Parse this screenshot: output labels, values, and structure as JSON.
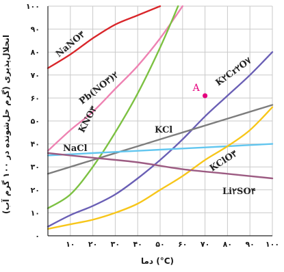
{
  "chart_data": {
    "type": "line",
    "xlabel": "دما (°C)",
    "ylabel": "انحلال‌پذیری (گرم حل‌شونده در ۱۰۰ گرم آب)",
    "xlim": [
      0,
      100
    ],
    "ylim": [
      0,
      100
    ],
    "grid": true,
    "x_ticks": [
      0,
      10,
      20,
      30,
      40,
      50,
      60,
      70,
      80,
      90,
      100
    ],
    "x_tick_labels": [
      "۰",
      "۱۰",
      "۲۰",
      "۳۰",
      "۴۰",
      "۵۰",
      "۶۰",
      "۷۰",
      "۸۰",
      "۹۰",
      "۱۰۰"
    ],
    "y_ticks": [
      0,
      10,
      20,
      30,
      40,
      50,
      60,
      70,
      80,
      90,
      100
    ],
    "y_tick_labels": [
      "۰",
      "۱۰",
      "۲۰",
      "۳۰",
      "۴۰",
      "۵۰",
      "۶۰",
      "۷۰",
      "۸۰",
      "۹۰",
      "۱۰۰"
    ],
    "series": [
      {
        "name": "NaNO۳",
        "color": "#d9262a",
        "x": [
          0,
          10,
          20,
          30,
          40,
          50
        ],
        "y": [
          73,
          79,
          86,
          92,
          96,
          100
        ]
      },
      {
        "name": "Pb(NO۳)۲",
        "color": "#ee82b2",
        "x": [
          0,
          10,
          20,
          30,
          40,
          50,
          60
        ],
        "y": [
          37,
          46,
          54,
          64,
          74,
          86,
          100
        ]
      },
      {
        "name": "KNO۳",
        "color": "#7cc142",
        "x": [
          0,
          10,
          20,
          30,
          40,
          50,
          58
        ],
        "y": [
          12,
          18,
          30,
          45,
          62,
          82,
          100
        ]
      },
      {
        "name": "K۲Cr۲O۷",
        "color": "#6a5fb5",
        "x": [
          0,
          10,
          20,
          30,
          40,
          50,
          60,
          70,
          80,
          90,
          100
        ],
        "y": [
          4,
          9,
          13,
          18,
          25,
          33,
          42,
          52,
          61,
          70,
          80
        ]
      },
      {
        "name": "KCl",
        "color": "#7d7d7d",
        "x": [
          0,
          20,
          40,
          60,
          80,
          100
        ],
        "y": [
          27,
          33,
          39,
          45,
          51,
          57
        ]
      },
      {
        "name": "NaCl",
        "color": "#62c6ef",
        "x": [
          0,
          20,
          40,
          60,
          80,
          100
        ],
        "y": [
          35,
          36,
          37,
          38,
          39,
          40
        ]
      },
      {
        "name": "KClO۳",
        "color": "#f7c61a",
        "x": [
          0,
          10,
          20,
          30,
          40,
          50,
          60,
          70,
          80,
          90,
          100
        ],
        "y": [
          3,
          5,
          7,
          10,
          14,
          20,
          26,
          33,
          39,
          46,
          56
        ]
      },
      {
        "name": "Li۲SO۴",
        "color": "#9c5b82",
        "x": [
          0,
          20,
          40,
          60,
          80,
          100
        ],
        "y": [
          36,
          34,
          32,
          29,
          27,
          25
        ]
      }
    ],
    "annotations": [
      {
        "label": "A",
        "x": 70,
        "y": 61,
        "color": "#e5007e"
      }
    ]
  }
}
